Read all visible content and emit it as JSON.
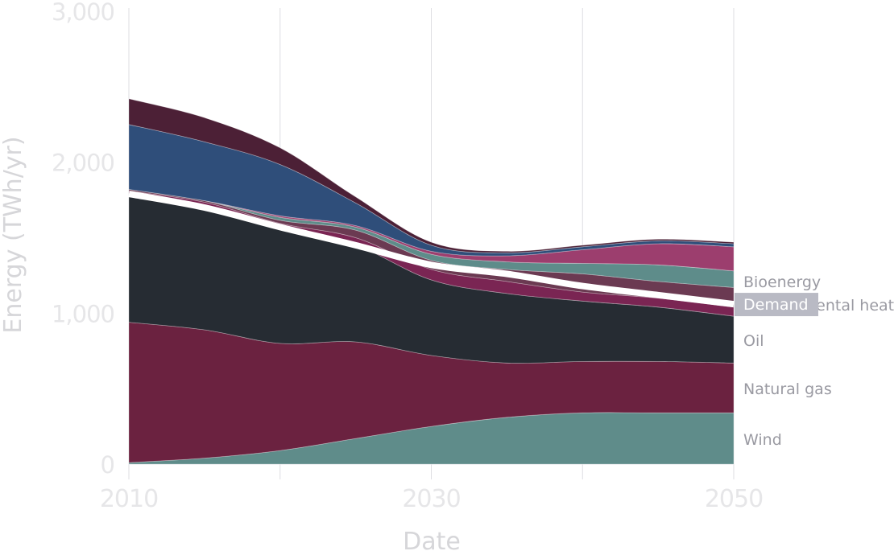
{
  "chart_data": {
    "type": "area",
    "stacked": true,
    "title": "",
    "xlabel": "Date",
    "ylabel": "Energy (TWh/yr)",
    "xlim": [
      2010,
      2050
    ],
    "ylim": [
      0,
      3000
    ],
    "x_ticks": [
      "2010",
      "2030",
      "2050"
    ],
    "y_ticks": [
      "0",
      "1,000",
      "2,000",
      "3,000"
    ],
    "grid": true,
    "x": [
      2010,
      2015,
      2020,
      2025,
      2030,
      2035,
      2040,
      2045,
      2050
    ],
    "series": [
      {
        "name": "Wind",
        "color": "#5f8c8a",
        "values": [
          10,
          40,
          90,
          170,
          250,
          310,
          340,
          340,
          340
        ]
      },
      {
        "name": "Natural gas",
        "color": "#6b2240",
        "values": [
          930,
          850,
          710,
          640,
          470,
          360,
          340,
          340,
          330
        ]
      },
      {
        "name": "Oil",
        "color": "#262c33",
        "values": [
          850,
          820,
          760,
          640,
          500,
          460,
          400,
          360,
          310
        ]
      },
      {
        "name": "",
        "color": "#7a2553",
        "values": [
          20,
          25,
          35,
          50,
          70,
          80,
          60,
          60,
          60
        ]
      },
      {
        "name": "Environmental heat",
        "color": "#6b3a52",
        "values": [
          10,
          10,
          20,
          50,
          60,
          80,
          120,
          110,
          130
        ]
      },
      {
        "name": "Bioenergy",
        "color": "#5e8c8a",
        "values": [
          0,
          0,
          20,
          20,
          40,
          50,
          70,
          110,
          110
        ]
      },
      {
        "name": "",
        "color": "#9c3e6e",
        "values": [
          0,
          0,
          10,
          10,
          20,
          40,
          90,
          140,
          160
        ]
      },
      {
        "name": "",
        "color": "#2f4e7a",
        "values": [
          430,
          390,
          340,
          150,
          40,
          20,
          20,
          20,
          20
        ]
      },
      {
        "name": "",
        "color": "#4c2036",
        "values": [
          170,
          160,
          110,
          40,
          20,
          10,
          10,
          10,
          10
        ]
      }
    ],
    "demand": {
      "name": "Demand",
      "values": [
        1790,
        1700,
        1570,
        1450,
        1320,
        1260,
        1180,
        1120,
        1060
      ]
    },
    "series_label_order": [
      "Bioenergy",
      "Environmental heat",
      "Oil",
      "Natural gas",
      "Wind"
    ],
    "demand_label": "Demand"
  }
}
